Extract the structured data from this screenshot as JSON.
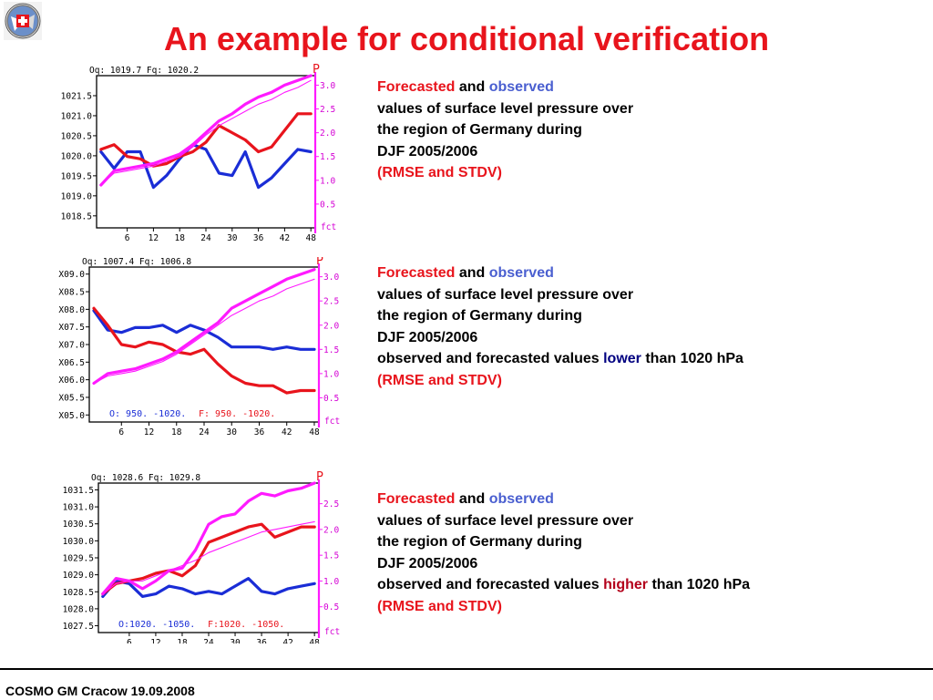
{
  "title": "An example for conditional verification",
  "footer": "COSMO GM Cracow 19.09.2008",
  "colors": {
    "title": "#e8141c",
    "observed_line": "#1a2dd6",
    "forecast_line": "#e8141c",
    "rmse_stdv_line": "#ff1aff"
  },
  "logo": {
    "icon": "cosmo-logo-icon"
  },
  "descriptions": [
    {
      "forecasted": "Forecasted",
      "and": "and",
      "observed": "observed",
      "line2": "values of surface level pressure over",
      "line3": "the region of Germany during",
      "line4": "DJF 2005/2006",
      "cond_prefix": "",
      "cond_word": "",
      "cond_suffix": "",
      "rmse": "(RMSE and STDV)"
    },
    {
      "forecasted": "Forecasted",
      "and": "and",
      "observed": "observed",
      "line2": "values of surface level pressure over",
      "line3": "the region of Germany during",
      "line4": "DJF 2005/2006",
      "cond_prefix": "observed and forecasted values ",
      "cond_word": "lower",
      "cond_suffix": " than 1020 hPa",
      "rmse": "(RMSE and STDV)"
    },
    {
      "forecasted": "Forecasted",
      "and": "and",
      "observed": "observed",
      "line2": "values of surface level pressure over",
      "line3": "the region of Germany during",
      "line4": "DJF 2005/2006",
      "cond_prefix": "observed and forecasted values ",
      "cond_word": "higher",
      "cond_suffix": " than 1020 hPa",
      "rmse": "(RMSE and STDV)"
    }
  ],
  "chart_data": [
    {
      "type": "line",
      "header": "Oq: 1019.7  Fq: 1020.2",
      "x": [
        0,
        3,
        6,
        9,
        12,
        15,
        18,
        21,
        24,
        27,
        30,
        33,
        36,
        39,
        42,
        45,
        48
      ],
      "xticks": [
        6,
        12,
        18,
        24,
        30,
        36,
        42,
        48
      ],
      "xtick_labels": [
        "6",
        "12",
        "18",
        "24",
        "30",
        "36",
        "42",
        "48"
      ],
      "xlim": [
        -1,
        49
      ],
      "ylim_left": [
        1018.2,
        1022.0
      ],
      "yticks_left": [
        1018.5,
        1019.0,
        1019.5,
        1020.0,
        1020.5,
        1021.0,
        1021.5
      ],
      "ytick_labels_left": [
        "1018.5",
        "1019.0",
        "1019.5",
        "1020.0",
        "1020.5",
        "1021.0",
        "1021.5"
      ],
      "ylim_right": [
        0,
        3.2
      ],
      "yticks_right": [
        0.5,
        1.0,
        1.5,
        2.0,
        2.5,
        3.0
      ],
      "ytick_labels_right": [
        "0.5",
        "1.0",
        "1.5",
        "2.0",
        "2.5",
        "3.0"
      ],
      "right_axis_label": "P",
      "x_axis_label": "fct",
      "legend": "",
      "series": [
        {
          "role": "observed",
          "values": [
            1.6,
            1.25,
            1.6,
            1.6,
            0.85,
            1.1,
            1.45,
            1.75,
            1.65,
            1.15,
            1.1,
            1.6,
            0.85,
            1.05,
            1.35,
            1.65,
            1.6
          ]
        },
        {
          "role": "forecast",
          "values": [
            1.65,
            1.75,
            1.5,
            1.45,
            1.3,
            1.35,
            1.5,
            1.6,
            1.8,
            2.15,
            2.0,
            1.85,
            1.6,
            1.7,
            2.05,
            2.4,
            2.4
          ]
        },
        {
          "role": "rmse",
          "values": [
            0.9,
            1.2,
            1.25,
            1.3,
            1.35,
            1.45,
            1.55,
            1.75,
            2.0,
            2.25,
            2.4,
            2.6,
            2.75,
            2.85,
            3.0,
            3.1,
            3.2
          ]
        },
        {
          "role": "stdv",
          "values": [
            0.9,
            1.15,
            1.2,
            1.25,
            1.3,
            1.4,
            1.5,
            1.7,
            1.95,
            2.15,
            2.3,
            2.45,
            2.6,
            2.7,
            2.85,
            2.95,
            3.1
          ]
        }
      ]
    },
    {
      "type": "line",
      "header": "Oq: 1007.4  Fq: 1006.8",
      "x": [
        0,
        3,
        6,
        9,
        12,
        15,
        18,
        21,
        24,
        27,
        30,
        33,
        36,
        39,
        42,
        45,
        48
      ],
      "xticks": [
        6,
        12,
        18,
        24,
        30,
        36,
        42,
        48
      ],
      "xtick_labels": [
        "6",
        "12",
        "18",
        "24",
        "30",
        "36",
        "42",
        "48"
      ],
      "xlim": [
        -1,
        49
      ],
      "ylim_left": [
        1004.8,
        1009.2
      ],
      "yticks_left": [
        1005.0,
        1005.5,
        1006.0,
        1006.5,
        1007.0,
        1007.5,
        1008.0,
        1008.5,
        1009.0
      ],
      "ytick_labels_left": [
        "X05.0",
        "X05.5",
        "X06.0",
        "X06.5",
        "X07.0",
        "X07.5",
        "X08.0",
        "X08.5",
        "X09.0"
      ],
      "ylim_right": [
        0,
        3.2
      ],
      "yticks_right": [
        0.5,
        1.0,
        1.5,
        2.0,
        2.5,
        3.0
      ],
      "ytick_labels_right": [
        "0.5",
        "1.0",
        "1.5",
        "2.0",
        "2.5",
        "3.0"
      ],
      "right_axis_label": "P",
      "x_axis_label": "fct",
      "legend_obs": "O: 950. -1020.",
      "legend_fc": "F: 950. -1020.",
      "series": [
        {
          "role": "observed",
          "values": [
            2.3,
            1.9,
            1.85,
            1.95,
            1.95,
            2.0,
            1.85,
            2.0,
            1.9,
            1.75,
            1.55,
            1.55,
            1.55,
            1.5,
            1.55,
            1.5,
            1.5
          ]
        },
        {
          "role": "forecast",
          "values": [
            2.35,
            2.0,
            1.6,
            1.55,
            1.65,
            1.6,
            1.45,
            1.4,
            1.5,
            1.2,
            0.95,
            0.8,
            0.75,
            0.75,
            0.6,
            0.65,
            0.65
          ]
        },
        {
          "role": "rmse",
          "values": [
            0.8,
            1.0,
            1.05,
            1.1,
            1.2,
            1.3,
            1.45,
            1.65,
            1.85,
            2.05,
            2.35,
            2.5,
            2.65,
            2.8,
            2.95,
            3.05,
            3.15
          ]
        },
        {
          "role": "stdv",
          "values": [
            0.8,
            0.95,
            1.0,
            1.05,
            1.15,
            1.25,
            1.4,
            1.6,
            1.8,
            2.0,
            2.2,
            2.35,
            2.5,
            2.6,
            2.75,
            2.85,
            2.95
          ]
        }
      ]
    },
    {
      "type": "line",
      "header": "Oq: 1028.6  Fq: 1029.8",
      "x": [
        0,
        3,
        6,
        9,
        12,
        15,
        18,
        21,
        24,
        27,
        30,
        33,
        36,
        39,
        42,
        45,
        48
      ],
      "xticks": [
        6,
        12,
        18,
        24,
        30,
        36,
        42,
        48
      ],
      "xtick_labels": [
        "6",
        "12",
        "18",
        "24",
        "30",
        "36",
        "42",
        "48"
      ],
      "xlim": [
        -1,
        49
      ],
      "ylim_left": [
        1027.3,
        1031.7
      ],
      "yticks_left": [
        1027.5,
        1028.0,
        1028.5,
        1029.0,
        1029.5,
        1030.0,
        1030.5,
        1031.0,
        1031.5
      ],
      "ytick_labels_left": [
        "1027.5",
        "1028.0",
        "1028.5",
        "1029.0",
        "1029.5",
        "1030.0",
        "1030.5",
        "1031.0",
        "1031.5"
      ],
      "ylim_right": [
        0,
        2.9
      ],
      "yticks_right": [
        0.5,
        1.0,
        1.5,
        2.0,
        2.5
      ],
      "ytick_labels_right": [
        "0.5",
        "1.0",
        "1.5",
        "2.0",
        "2.5"
      ],
      "right_axis_label": "P",
      "x_axis_label": "fct",
      "legend_obs": "O:1020. -1050.",
      "legend_fc": "F:1020. -1050.",
      "series": [
        {
          "role": "observed",
          "values": [
            0.7,
            1.0,
            0.95,
            0.7,
            0.75,
            0.9,
            0.85,
            0.75,
            0.8,
            0.75,
            0.9,
            1.05,
            0.8,
            0.75,
            0.85,
            0.9,
            0.95
          ]
        },
        {
          "role": "forecast",
          "values": [
            0.75,
            0.95,
            1.0,
            1.05,
            1.15,
            1.2,
            1.1,
            1.3,
            1.75,
            1.85,
            1.95,
            2.05,
            2.1,
            1.85,
            1.95,
            2.05,
            2.05
          ]
        },
        {
          "role": "rmse",
          "values": [
            0.75,
            1.05,
            1.0,
            0.85,
            1.0,
            1.2,
            1.25,
            1.6,
            2.1,
            2.25,
            2.3,
            2.55,
            2.7,
            2.65,
            2.75,
            2.8,
            2.9
          ]
        },
        {
          "role": "stdv",
          "values": [
            0.75,
            0.95,
            1.0,
            1.0,
            1.1,
            1.2,
            1.3,
            1.4,
            1.55,
            1.65,
            1.75,
            1.85,
            1.95,
            2.0,
            2.05,
            2.1,
            2.15
          ]
        }
      ]
    }
  ]
}
